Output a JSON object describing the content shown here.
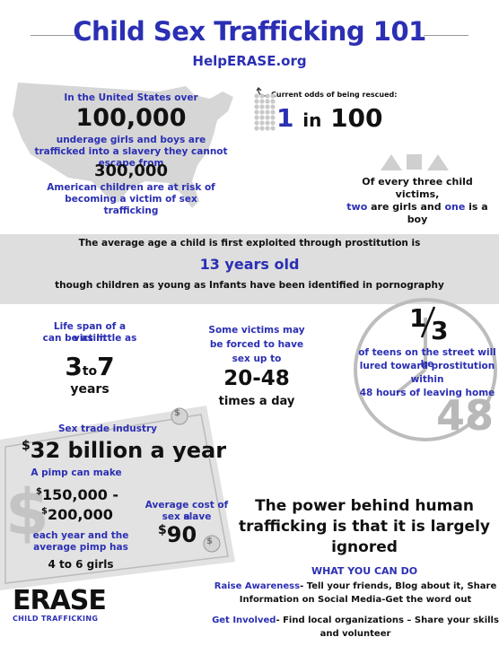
{
  "header": {
    "title": "Child Sex Trafficking 101",
    "site": "HelpERASE.org"
  },
  "us_stats": {
    "intro": "In the United States over",
    "count1": "100,000",
    "desc1": "underage girls and boys are trafficked into a slavery they cannot escape from",
    "count2": "300,000",
    "desc2": "American children are at risk of becoming a victim of sex trafficking"
  },
  "rescue": {
    "label": "Current odds of being rescued:",
    "num": "1",
    "mid": "in",
    "den": "100"
  },
  "victims": {
    "line1": "Of every three child victims,",
    "two": "two",
    "girls": "are girls and",
    "one": "one",
    "is_a": "is a",
    "boy": "boy"
  },
  "age": {
    "line1": "The average age a child is first exploited through prostitution is",
    "line2": "13 years old",
    "line3": "though children as young as Infants  have been identified in pornography"
  },
  "lifespan": {
    "label1": "Life span of a victim",
    "label2": "can be as little as",
    "from": "3",
    "to": "to",
    "upto": "7",
    "unit": "years"
  },
  "forced": {
    "l1": "Some victims may",
    "l2": "be forced to have",
    "l3": "sex up to",
    "value": "20-48",
    "unit": "times a day"
  },
  "teens": {
    "fraction_num": "1",
    "fraction_den": "3",
    "l1": "of teens on the street will be",
    "l2": "lured toward prostitution",
    "l3": "within",
    "l4": "48 hours of leaving home",
    "watermark": "48"
  },
  "industry": {
    "label": "Sex trade industry",
    "dollar": "$",
    "amount": "32 billion a year",
    "pimp_label": "A pimp can make",
    "pimp_range_1": "150,000 -",
    "pimp_range_2": "200,000",
    "pimp_sub1": "each year and the",
    "pimp_sub2": "average pimp has",
    "girls": "4 to 6 girls",
    "avg_label1": "Average cost of a",
    "avg_label2": "sex slave",
    "avg_value": "90",
    "coin1": "$",
    "coin2": "$",
    "big_dollar": "$"
  },
  "power": {
    "l1": "The power behind human",
    "l2": "trafficking is that it is largely",
    "l3": "ignored"
  },
  "actions": {
    "heading": "WHAT YOU CAN DO",
    "raise_label": "Raise Awareness",
    "raise_text1": "- Tell your friends, Blog about it, Share",
    "raise_text2": "Information on Social Media-Get the word out",
    "involved_label": "Get Involved",
    "involved_text1": "-  Find local organizations – Share your skills",
    "involved_text2": "and volunteer"
  },
  "logo": {
    "word": "ERASE",
    "sub": "CHILD TRAFFICKING"
  }
}
